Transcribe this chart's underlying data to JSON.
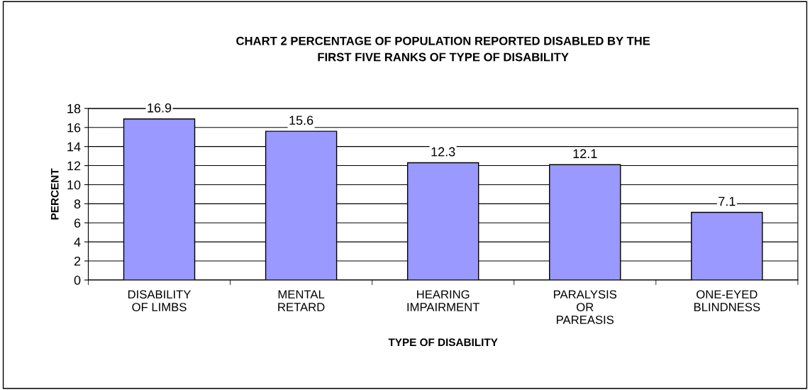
{
  "chart_data": {
    "type": "bar",
    "title": "CHART 2 PERCENTAGE OF POPULATION REPORTED DISABLED BY THE\nFIRST FIVE RANKS OF TYPE OF DISABILITY",
    "xlabel": "TYPE OF DISABILITY",
    "ylabel": "PERCENT",
    "categories": [
      "DISABILITY\nOF LIMBS",
      "MENTAL\nRETARD",
      "HEARING\nIMPAIRMENT",
      "PARALYSIS\nOR\nPAREASIS",
      "ONE-EYED\nBLINDNESS"
    ],
    "values": [
      16.9,
      15.6,
      12.3,
      12.1,
      7.1
    ],
    "color": "#9999ff",
    "ylim": [
      0,
      18
    ],
    "yticks": [
      0,
      2,
      4,
      6,
      8,
      10,
      12,
      14,
      16,
      18
    ],
    "grid": "y",
    "data_labels": true,
    "legend": false
  }
}
